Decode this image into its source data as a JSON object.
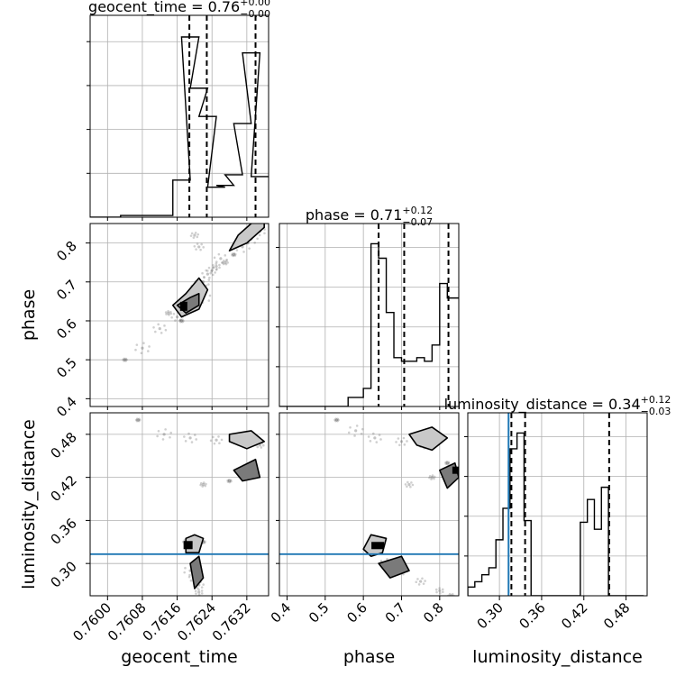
{
  "figure": {
    "type": "corner-plot"
  },
  "colors": {
    "hist": "#000000",
    "grid": "#b0b0b0",
    "truth": "#1f77b4",
    "contour_fill": [
      "#f0f0f0",
      "#c8c8c8",
      "#7a7a7a",
      "#303030"
    ],
    "scatter": "#555555"
  },
  "params": [
    {
      "name": "geocent_time",
      "title_text": "geocent_time = 0.76",
      "title_sup": "+0.00",
      "title_sub": "−0.00",
      "range": [
        0.7596,
        0.7637
      ],
      "ticks": [
        0.76,
        0.7608,
        0.7616,
        0.7624,
        0.7632
      ],
      "tick_labels": [
        "0.7600",
        "0.7608",
        "0.7616",
        "0.7624",
        "0.7632"
      ],
      "quantiles": [
        0.76188,
        0.76228,
        0.7634
      ]
    },
    {
      "name": "phase",
      "title_text": "phase = 0.71",
      "title_sup": "+0.12",
      "title_sub": "−0.07",
      "range": [
        0.38,
        0.85
      ],
      "ticks": [
        0.4,
        0.5,
        0.6,
        0.7,
        0.8
      ],
      "tick_labels": [
        "0.4",
        "0.5",
        "0.6",
        "0.7",
        "0.8"
      ],
      "quantiles": [
        0.64,
        0.707,
        0.823
      ]
    },
    {
      "name": "luminosity_distance",
      "title_text": "luminosity_distance = 0.34",
      "title_sup": "+0.12",
      "title_sub": "−0.03",
      "range": [
        0.255,
        0.51
      ],
      "ticks": [
        0.3,
        0.36,
        0.42,
        0.48
      ],
      "tick_labels": [
        "0.30",
        "0.36",
        "0.42",
        "0.48"
      ],
      "quantiles": [
        0.317,
        0.3365,
        0.456
      ],
      "truth": 0.313
    }
  ],
  "chart_data": {
    "type": "corner",
    "histograms": [
      {
        "param": "geocent_time",
        "x": [
          0.7597,
          0.7601,
          0.7605,
          0.7609,
          0.7613,
          0.7617,
          0.7619,
          0.7621,
          0.7623,
          0.7625,
          0.7627,
          0.7629,
          0.7631,
          0.7633,
          0.7635
        ],
        "values": [
          0.0,
          0.0,
          0.01,
          0.01,
          0.01,
          0.21,
          1.02,
          0.73,
          0.57,
          0.17,
          0.18,
          0.24,
          0.53,
          0.93,
          0.23
        ]
      },
      {
        "param": "phase",
        "x": [
          0.39,
          0.41,
          0.43,
          0.45,
          0.47,
          0.49,
          0.51,
          0.53,
          0.55,
          0.57,
          0.59,
          0.61,
          0.63,
          0.65,
          0.67,
          0.69,
          0.71,
          0.73,
          0.75,
          0.77,
          0.79,
          0.81,
          0.83,
          0.85
        ],
        "values": [
          0,
          0,
          0,
          0,
          0,
          0,
          0,
          0,
          0,
          0.05,
          0.05,
          0.1,
          0.9,
          0.82,
          0.52,
          0.27,
          0.25,
          0.25,
          0.27,
          0.25,
          0.34,
          0.68,
          0.6,
          0.6
        ]
      },
      {
        "param": "luminosity_distance",
        "x": [
          0.26,
          0.27,
          0.28,
          0.29,
          0.3,
          0.31,
          0.32,
          0.33,
          0.34,
          0.35,
          0.36,
          0.37,
          0.38,
          0.39,
          0.4,
          0.41,
          0.42,
          0.43,
          0.44,
          0.45,
          0.46,
          0.47,
          0.48,
          0.49,
          0.5
        ],
        "values": [
          0.05,
          0.08,
          0.12,
          0.16,
          0.32,
          0.5,
          0.84,
          0.93,
          0.43,
          0.0,
          0.0,
          0.0,
          0.0,
          0.0,
          0.0,
          0.0,
          0.42,
          0.55,
          0.38,
          0.62,
          0.0,
          0.0,
          0.0,
          0.0,
          0.0
        ]
      }
    ],
    "pairs": [
      {
        "x_param": "geocent_time",
        "y_param": "phase",
        "points": [
          [
            0.7604,
            0.5
          ],
          [
            0.7608,
            0.53
          ],
          [
            0.7612,
            0.58
          ],
          [
            0.7616,
            0.61
          ],
          [
            0.76175,
            0.625
          ],
          [
            0.7618,
            0.64
          ],
          [
            0.7619,
            0.66
          ],
          [
            0.762,
            0.675
          ],
          [
            0.7621,
            0.69
          ],
          [
            0.7622,
            0.7
          ],
          [
            0.7623,
            0.72
          ],
          [
            0.7624,
            0.73
          ],
          [
            0.7625,
            0.74
          ],
          [
            0.7627,
            0.75
          ],
          [
            0.7629,
            0.77
          ],
          [
            0.7631,
            0.79
          ],
          [
            0.7633,
            0.81
          ],
          [
            0.7635,
            0.83
          ],
          [
            0.7621,
            0.79
          ],
          [
            0.762,
            0.82
          ],
          [
            0.7614,
            0.62
          ],
          [
            0.7617,
            0.6
          ],
          [
            0.7622,
            0.66
          ],
          [
            0.7626,
            0.76
          ]
        ],
        "contours": [
          [
            [
              0.7615,
              0.64
            ],
            [
              0.7617,
              0.61
            ],
            [
              0.7621,
              0.63
            ],
            [
              0.7623,
              0.68
            ],
            [
              0.7621,
              0.71
            ],
            [
              0.7618,
              0.67
            ]
          ],
          [
            [
              0.7616,
              0.64
            ],
            [
              0.7618,
              0.62
            ],
            [
              0.7621,
              0.64
            ],
            [
              0.7621,
              0.67
            ],
            [
              0.7619,
              0.66
            ]
          ],
          [
            [
              0.7628,
              0.78
            ],
            [
              0.7632,
              0.8
            ],
            [
              0.7636,
              0.84
            ],
            [
              0.7636,
              0.86
            ],
            [
              0.7633,
              0.85
            ],
            [
              0.763,
              0.82
            ]
          ]
        ]
      },
      {
        "x_param": "geocent_time",
        "y_param": "luminosity_distance",
        "points": [
          [
            0.7607,
            0.5
          ],
          [
            0.7613,
            0.48
          ],
          [
            0.7619,
            0.475
          ],
          [
            0.7625,
            0.472
          ],
          [
            0.763,
            0.47
          ],
          [
            0.7635,
            0.465
          ],
          [
            0.7622,
            0.41
          ],
          [
            0.7628,
            0.415
          ],
          [
            0.7632,
            0.43
          ],
          [
            0.7619,
            0.29
          ],
          [
            0.762,
            0.28
          ],
          [
            0.7621,
            0.27
          ],
          [
            0.7621,
            0.26
          ],
          [
            0.7618,
            0.33
          ],
          [
            0.7622,
            0.33
          ]
        ],
        "contours": [
          [
            [
              0.7628,
              0.48
            ],
            [
              0.7633,
              0.485
            ],
            [
              0.7636,
              0.47
            ],
            [
              0.7632,
              0.46
            ],
            [
              0.7628,
              0.47
            ]
          ],
          [
            [
              0.7629,
              0.43
            ],
            [
              0.7634,
              0.445
            ],
            [
              0.7635,
              0.42
            ],
            [
              0.7631,
              0.415
            ]
          ],
          [
            [
              0.7618,
              0.315
            ],
            [
              0.7618,
              0.335
            ],
            [
              0.762,
              0.34
            ],
            [
              0.7622,
              0.335
            ],
            [
              0.7621,
              0.315
            ]
          ],
          [
            [
              0.7619,
              0.3
            ],
            [
              0.7621,
              0.31
            ],
            [
              0.7622,
              0.28
            ],
            [
              0.762,
              0.265
            ]
          ]
        ]
      },
      {
        "x_param": "phase",
        "y_param": "luminosity_distance",
        "points": [
          [
            0.53,
            0.5
          ],
          [
            0.58,
            0.485
          ],
          [
            0.63,
            0.475
          ],
          [
            0.7,
            0.47
          ],
          [
            0.76,
            0.465
          ],
          [
            0.72,
            0.41
          ],
          [
            0.78,
            0.42
          ],
          [
            0.82,
            0.44
          ],
          [
            0.63,
            0.33
          ],
          [
            0.66,
            0.3
          ],
          [
            0.7,
            0.29
          ],
          [
            0.75,
            0.275
          ],
          [
            0.8,
            0.262
          ],
          [
            0.83,
            0.255
          ]
        ],
        "contours": [
          [
            [
              0.72,
              0.48
            ],
            [
              0.78,
              0.49
            ],
            [
              0.82,
              0.475
            ],
            [
              0.78,
              0.458
            ],
            [
              0.74,
              0.465
            ]
          ],
          [
            [
              0.8,
              0.43
            ],
            [
              0.84,
              0.44
            ],
            [
              0.85,
              0.42
            ],
            [
              0.82,
              0.405
            ]
          ],
          [
            [
              0.6,
              0.32
            ],
            [
              0.62,
              0.34
            ],
            [
              0.66,
              0.335
            ],
            [
              0.65,
              0.315
            ],
            [
              0.62,
              0.31
            ]
          ],
          [
            [
              0.64,
              0.3
            ],
            [
              0.7,
              0.31
            ],
            [
              0.72,
              0.29
            ],
            [
              0.67,
              0.28
            ]
          ]
        ]
      }
    ]
  }
}
